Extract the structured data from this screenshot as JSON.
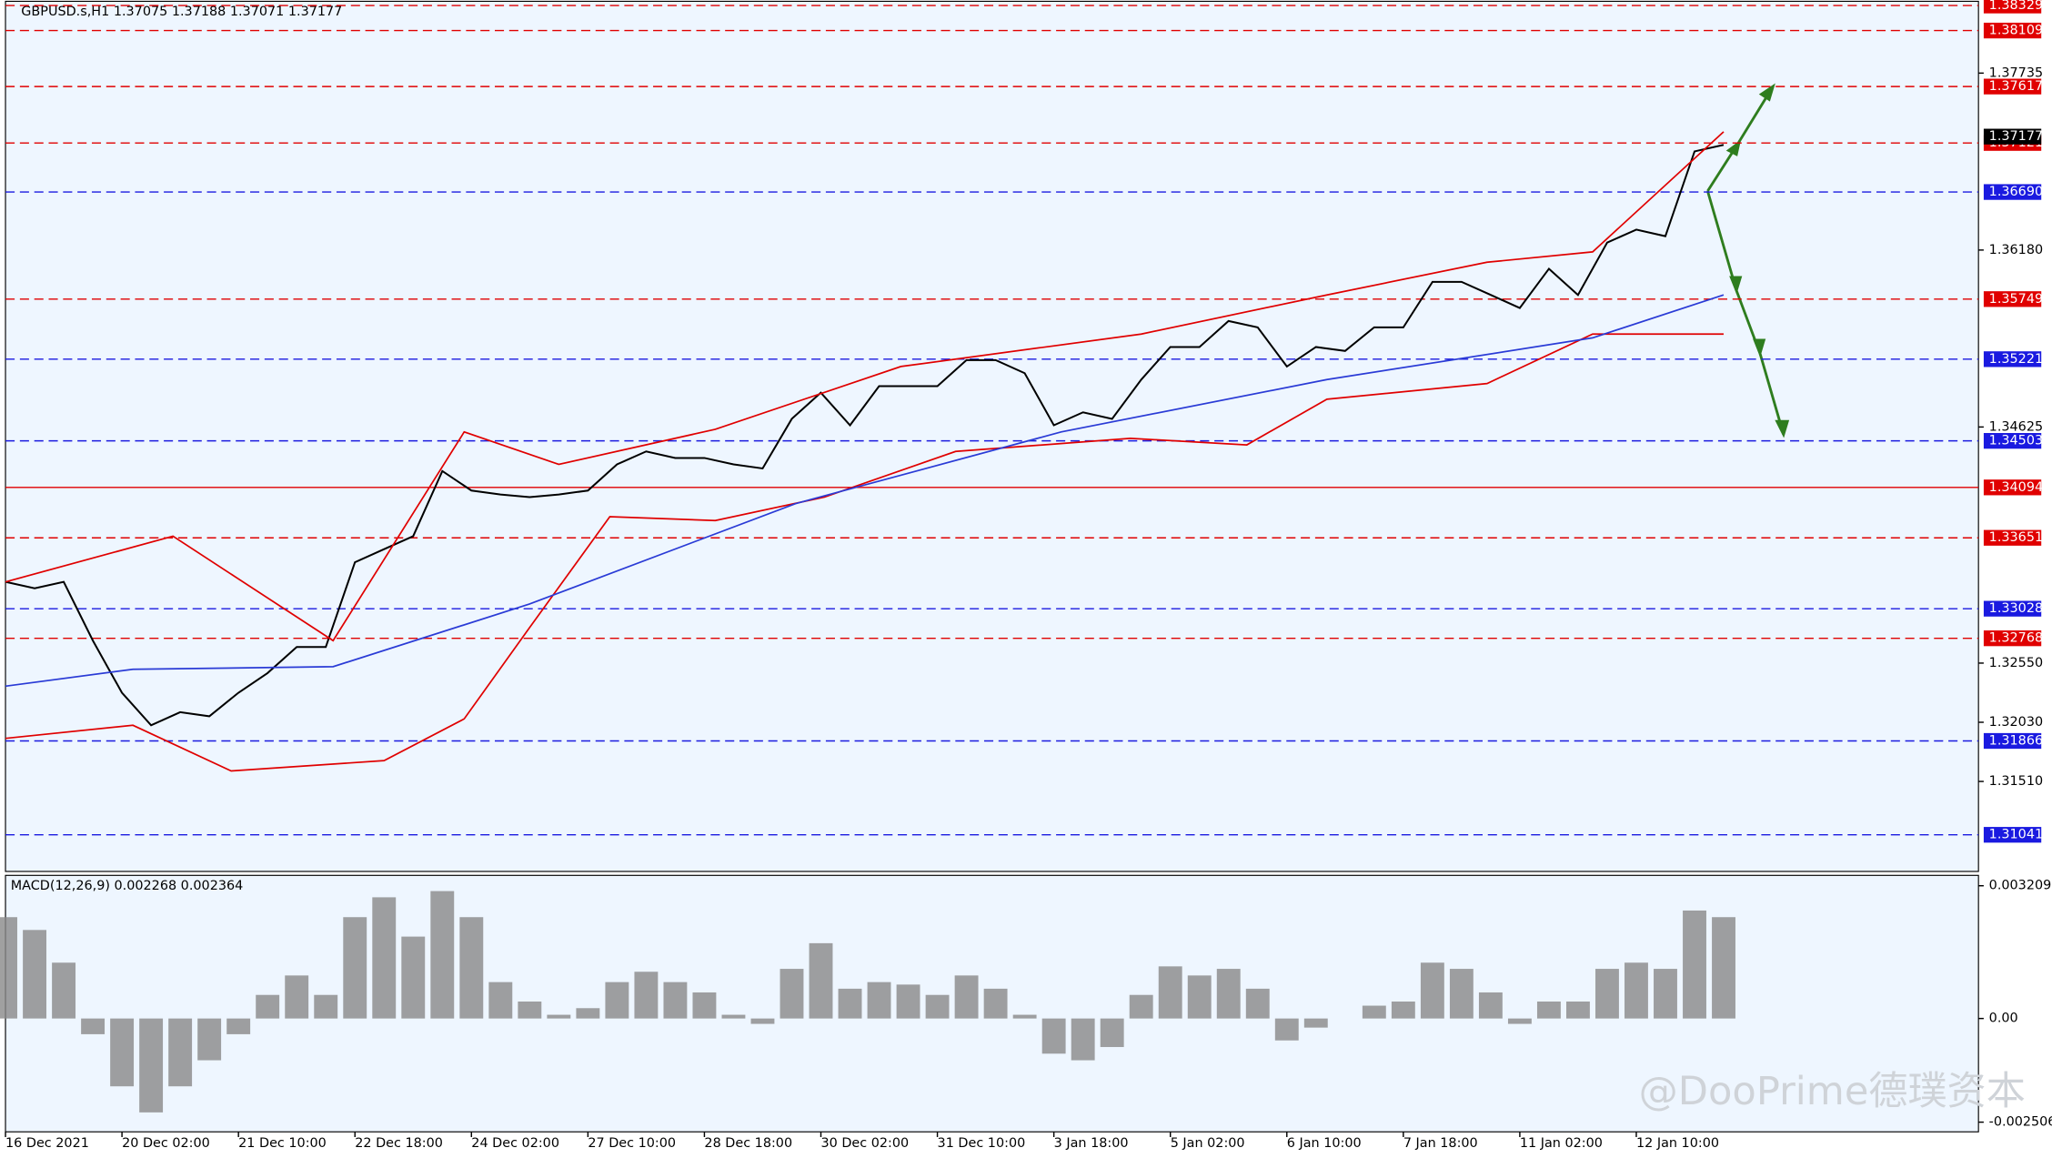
{
  "chart_data": [
    {
      "type": "line",
      "title": "GBPUSD.s,H1  1.37075 1.37188 1.37071 1.37177",
      "x": [
        0,
        8,
        16,
        24,
        32,
        40,
        48,
        56,
        64,
        72,
        80,
        88,
        96,
        104,
        112,
        120,
        128,
        136,
        144,
        152,
        160,
        168,
        176,
        184,
        192,
        200,
        208,
        216,
        224,
        232,
        240,
        248,
        256,
        264,
        272,
        280,
        288,
        296,
        304,
        312,
        320,
        328,
        336,
        344,
        352,
        360,
        368,
        376,
        384,
        392,
        400,
        408,
        416,
        424,
        432,
        440,
        448,
        456,
        464,
        472
      ],
      "xlim": [
        0,
        542
      ],
      "xticks": [
        {
          "value": 0,
          "label": "16 Dec 2021"
        },
        {
          "value": 32,
          "label": "20 Dec 02:00"
        },
        {
          "value": 64,
          "label": "21 Dec 10:00"
        },
        {
          "value": 96,
          "label": "22 Dec 18:00"
        },
        {
          "value": 128,
          "label": "24 Dec 02:00"
        },
        {
          "value": 160,
          "label": "27 Dec 10:00"
        },
        {
          "value": 192,
          "label": "28 Dec 18:00"
        },
        {
          "value": 224,
          "label": "30 Dec 02:00"
        },
        {
          "value": 256,
          "label": "31 Dec 10:00"
        },
        {
          "value": 288,
          "label": "3 Jan 18:00"
        },
        {
          "value": 320,
          "label": "5 Jan 02:00"
        },
        {
          "value": 352,
          "label": "6 Jan 10:00"
        },
        {
          "value": 384,
          "label": "7 Jan 18:00"
        },
        {
          "value": 416,
          "label": "11 Jan 02:00"
        },
        {
          "value": 448,
          "label": "12 Jan 10:00"
        }
      ],
      "ylim": [
        1.30719,
        1.38366
      ],
      "yticks": [
        1.37735,
        {
          "value": 1.3618,
          "label": "1.36180"
        },
        1.34625,
        {
          "value": 1.3255,
          "label": "1.32550"
        },
        {
          "value": 1.3203,
          "label": "1.32030"
        },
        {
          "value": 1.3151,
          "label": "1.31510"
        }
      ],
      "series": [
        {
          "color": "#000000",
          "values": [
            1.33264,
            1.33207,
            1.33264,
            1.32748,
            1.3229,
            1.32003,
            1.32118,
            1.32083,
            1.3229,
            1.32462,
            1.32691,
            1.32691,
            1.33436,
            1.33551,
            1.33665,
            1.34238,
            1.34067,
            1.34032,
            1.34009,
            1.34032,
            1.34067,
            1.34296,
            1.3441,
            1.34353,
            1.34353,
            1.34296,
            1.34261,
            1.34697,
            1.34926,
            1.3464,
            1.34984,
            1.34984,
            1.34984,
            1.35213,
            1.35213,
            1.35098,
            1.3464,
            1.34754,
            1.34697,
            1.35041,
            1.35328,
            1.35328,
            1.35557,
            1.355,
            1.35156,
            1.35328,
            1.35293,
            1.355,
            1.355,
            1.35901,
            1.35901,
            1.35786,
            1.35671,
            1.36015,
            1.35786,
            1.36245,
            1.36359,
            1.36302,
            1.37047,
            1.37104
          ]
        },
        {
          "color": "#e00000",
          "x": [
            0,
            46,
            90,
            126,
            152,
            195,
            246,
            312,
            363,
            407,
            436,
            472
          ],
          "values": [
            1.33264,
            1.33665,
            1.32748,
            1.34582,
            1.34296,
            1.34605,
            1.35156,
            1.35442,
            1.35786,
            1.36073,
            1.36164,
            1.37219
          ]
        },
        {
          "color": "#e00000",
          "x": [
            0,
            35,
            62,
            104,
            126,
            144,
            166,
            195,
            225,
            261,
            309,
            341,
            363,
            407,
            436,
            472
          ],
          "values": [
            1.31888,
            1.32003,
            1.31602,
            1.31693,
            1.3206,
            1.32863,
            1.33837,
            1.33803,
            1.34009,
            1.3441,
            1.34525,
            1.34468,
            1.34869,
            1.35007,
            1.35442,
            1.35442
          ]
        },
        {
          "color": "#2a3bd6",
          "x": [
            0,
            35,
            90,
            144,
            217,
            290,
            363,
            436,
            472
          ],
          "values": [
            1.32347,
            1.32496,
            1.32519,
            1.33069,
            1.33952,
            1.34582,
            1.35041,
            1.35408,
            1.35786
          ]
        }
      ],
      "levels": [
        {
          "value": 1.38329,
          "color": "#e00000"
        },
        {
          "value": 1.38109,
          "color": "#e00000"
        },
        {
          "value": 1.37617,
          "color": "#e00000"
        },
        {
          "value": 1.37121,
          "color": "#e00000"
        },
        {
          "value": 1.3669,
          "label": "1.36690",
          "color": "#1a1ae0"
        },
        {
          "value": 1.35749,
          "color": "#e00000"
        },
        {
          "value": 1.35221,
          "color": "#1a1ae0"
        },
        {
          "value": 1.34503,
          "color": "#1a1ae0"
        },
        {
          "value": 1.34094,
          "color": "#e00000",
          "solid": true
        },
        {
          "value": 1.33651,
          "color": "#e00000"
        },
        {
          "value": 1.33028,
          "color": "#1a1ae0"
        },
        {
          "value": 1.32768,
          "color": "#e00000"
        },
        {
          "value": 1.31866,
          "color": "#1a1ae0"
        },
        {
          "value": 1.31041,
          "color": "#1a1ae0"
        }
      ],
      "current_price": 1.37177
    },
    {
      "type": "bar",
      "title": "MACD(12,26,9) 0.002268 0.002364",
      "color": "#888888",
      "ylim": [
        -0.00274,
        0.00346
      ],
      "yticks": [
        0.003209,
        {
          "value": 0,
          "label": "0.00"
        },
        -0.002506
      ],
      "values": [
        0.00245,
        0.00214,
        0.00135,
        -0.00038,
        -0.00164,
        -0.00227,
        -0.00164,
        -0.00101,
        -0.00038,
        0.00057,
        0.00104,
        0.00057,
        0.00245,
        0.00293,
        0.00198,
        0.00308,
        0.00245,
        0.00088,
        0.00041,
        9e-05,
        0.00025,
        0.00088,
        0.00113,
        0.00088,
        0.00063,
        9e-05,
        -0.00013,
        0.0012,
        0.00182,
        0.00072,
        0.00088,
        0.00082,
        0.00057,
        0.00104,
        0.00072,
        9e-05,
        -0.00085,
        -0.00101,
        -0.00069,
        0.00057,
        0.00126,
        0.00104,
        0.0012,
        0.00072,
        -0.00053,
        -0.00022,
        0,
        0.00031,
        0.00041,
        0.00135,
        0.0012,
        0.00063,
        -0.00013,
        0.00041,
        0.00041,
        0.0012,
        0.00135,
        0.0012,
        0.00261,
        0.00245
      ]
    }
  ],
  "watermark": "@DooPrime德璞资本"
}
